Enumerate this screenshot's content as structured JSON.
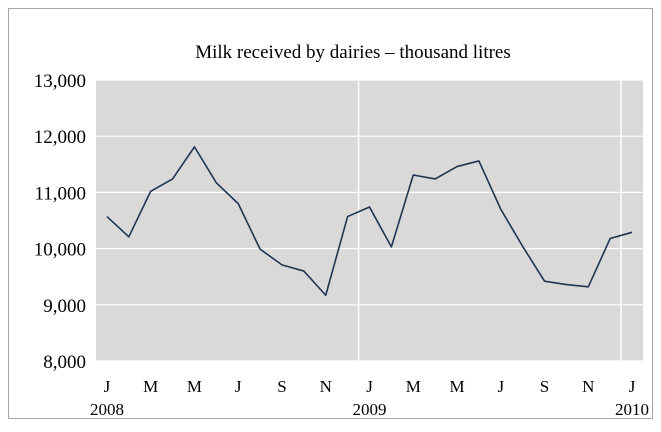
{
  "chart_data": {
    "type": "line",
    "title": "Milk received by dairies – thousand litres",
    "xlabel": "",
    "ylabel": "",
    "x": [
      "2008-01",
      "2008-02",
      "2008-03",
      "2008-04",
      "2008-05",
      "2008-06",
      "2008-07",
      "2008-08",
      "2008-09",
      "2008-10",
      "2008-11",
      "2008-12",
      "2009-01",
      "2009-02",
      "2009-03",
      "2009-04",
      "2009-05",
      "2009-06",
      "2009-07",
      "2009-08",
      "2009-09",
      "2009-10",
      "2009-11",
      "2009-12",
      "2010-01"
    ],
    "series": [
      {
        "values": [
          10570,
          10210,
          11020,
          11240,
          11810,
          11170,
          10800,
          9990,
          9710,
          9600,
          9170,
          10570,
          10740,
          10030,
          11310,
          11240,
          11460,
          11560,
          10700,
          10040,
          9420,
          9360,
          9320,
          10180,
          10290
        ]
      }
    ],
    "ylim": [
      8000,
      13000
    ],
    "yticks": [
      {
        "value": 8000,
        "label": "8,000"
      },
      {
        "value": 9000,
        "label": "9,000"
      },
      {
        "value": 10000,
        "label": "10,000"
      },
      {
        "value": 11000,
        "label": "11,000"
      },
      {
        "value": 12000,
        "label": "12,000"
      },
      {
        "value": 13000,
        "label": "13,000"
      }
    ],
    "xticks": [
      {
        "index": 0,
        "label": "J"
      },
      {
        "index": 2,
        "label": "M"
      },
      {
        "index": 4,
        "label": "M"
      },
      {
        "index": 6,
        "label": "J"
      },
      {
        "index": 8,
        "label": "S"
      },
      {
        "index": 10,
        "label": "N"
      },
      {
        "index": 12,
        "label": "J"
      },
      {
        "index": 14,
        "label": "M"
      },
      {
        "index": 16,
        "label": "M"
      },
      {
        "index": 18,
        "label": "J"
      },
      {
        "index": 20,
        "label": "S"
      },
      {
        "index": 22,
        "label": "N"
      },
      {
        "index": 24,
        "label": "J"
      }
    ],
    "year_labels": [
      {
        "index": 0,
        "label": "2008"
      },
      {
        "index": 12,
        "label": "2009"
      },
      {
        "index": 24,
        "label": "2010"
      }
    ],
    "year_dividers": [
      12,
      24
    ],
    "grid": true,
    "legend": "none",
    "colors": {
      "line": "#1f3552",
      "plot_background": "#d9d9d9",
      "gridline": "#ffffff",
      "frame": "#a6a6a6"
    }
  }
}
